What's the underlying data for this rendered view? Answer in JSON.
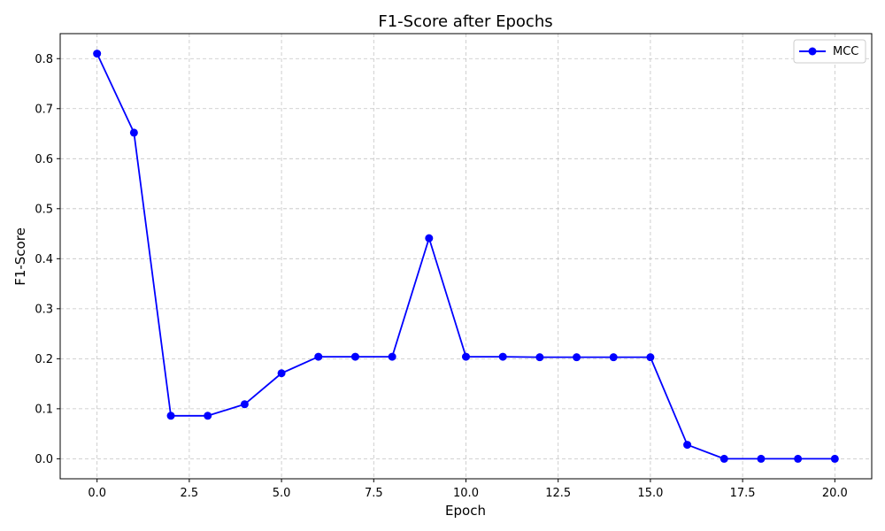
{
  "chart_data": {
    "type": "line",
    "title": "F1-Score after Epochs",
    "xlabel": "Epoch",
    "ylabel": "F1-Score",
    "xlim": [
      -1,
      21
    ],
    "ylim": [
      -0.04,
      0.85
    ],
    "xticks": [
      0.0,
      2.5,
      5.0,
      7.5,
      10.0,
      12.5,
      15.0,
      17.5,
      20.0
    ],
    "xtick_labels": [
      "0.0",
      "2.5",
      "5.0",
      "7.5",
      "10.0",
      "12.5",
      "15.0",
      "17.5",
      "20.0"
    ],
    "yticks": [
      0.0,
      0.1,
      0.2,
      0.3,
      0.4,
      0.5,
      0.6,
      0.7,
      0.8
    ],
    "ytick_labels": [
      "0.0",
      "0.1",
      "0.2",
      "0.3",
      "0.4",
      "0.5",
      "0.6",
      "0.7",
      "0.8"
    ],
    "grid": true,
    "legend_position": "top-right",
    "series": [
      {
        "name": "MCC",
        "color": "#0000ff",
        "marker": "circle",
        "x": [
          0,
          1,
          2,
          3,
          4,
          5,
          6,
          7,
          8,
          9,
          10,
          11,
          12,
          13,
          14,
          15,
          16,
          17,
          18,
          19,
          20
        ],
        "y": [
          0.81,
          0.652,
          0.086,
          0.086,
          0.109,
          0.171,
          0.204,
          0.204,
          0.204,
          0.441,
          0.204,
          0.204,
          0.203,
          0.203,
          0.203,
          0.203,
          0.028,
          0.0,
          0.0,
          0.0,
          0.0
        ]
      }
    ]
  }
}
